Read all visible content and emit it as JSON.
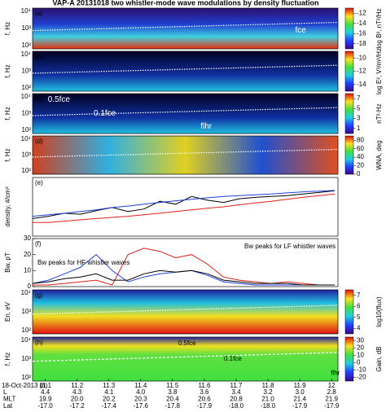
{
  "title": "VAP-A  20131018    two whistler-mode wave modulations by density fluctuation",
  "time_axis": {
    "label": "18-Oct-2013 (h)",
    "xlim": [
      11.06,
      12.02
    ],
    "ticks": [
      11.1,
      11.2,
      11.3,
      11.4,
      11.5,
      11.6,
      11.7,
      11.8,
      11.9,
      12
    ]
  },
  "ephemeris": [
    {
      "name": "L",
      "values": [
        "4.4",
        "4.3",
        "4.1",
        "4.0",
        "3.8",
        "3.6",
        "3.4",
        "3.2",
        "3.0",
        "2.8"
      ]
    },
    {
      "name": "MLT",
      "values": [
        "19.9",
        "20.0",
        "20.2",
        "20.3",
        "20.4",
        "20.6",
        "20.8",
        "21.0",
        "21.4",
        "21.9"
      ]
    },
    {
      "name": "Lat",
      "values": [
        "-17.0",
        "-17.2",
        "-17.4",
        "-17.6",
        "-17.8",
        "-17.9",
        "-18.0",
        "-18.0",
        "-17.9",
        "-17.9"
      ]
    }
  ],
  "spectrograms": [
    {
      "label": "(a)",
      "ylabel": "f, Hz",
      "yticks": [
        "10⁴",
        "10³",
        "10²"
      ],
      "colorbar": {
        "label": "log B², nT²/Hz",
        "clim": [
          -19,
          -11
        ],
        "ticks": [
          -12,
          -14,
          -16,
          -18
        ]
      },
      "annotations": [
        "fce"
      ]
    },
    {
      "label": "(b)",
      "ylabel": "f, Hz",
      "yticks": [
        "10⁴",
        "10³",
        "10²"
      ],
      "colorbar": {
        "label": "log E², V²/m²/Hz",
        "clim": [
          -15,
          -9
        ],
        "ticks": [
          -10,
          -12,
          -14
        ]
      },
      "annotations": []
    },
    {
      "label": "(c)",
      "ylabel": "f, Hz",
      "yticks": [
        "10⁴",
        "10³",
        "10²"
      ],
      "colorbar": {
        "label": "nT²·Hz",
        "clim": [
          0,
          8
        ],
        "ticks": [
          1,
          3,
          5,
          7
        ]
      },
      "annotations": [
        "0.5fce",
        "0.1fce",
        "flhr"
      ]
    },
    {
      "label": "(d)",
      "ylabel": "f, Hz",
      "yticks": [
        "10⁴",
        "10³",
        "10²"
      ],
      "colorbar": {
        "label": "WNA, deg",
        "clim": [
          0,
          90
        ],
        "ticks": [
          80,
          60,
          40,
          20,
          0
        ]
      },
      "annotations": []
    },
    {
      "label": "(g)",
      "ylabel": "En, eV",
      "yticks": [
        "10⁴",
        "10³",
        "10²"
      ],
      "colorbar": {
        "label": "log10(flux)",
        "clim": [
          3.5,
          7.5
        ],
        "ticks": [
          7,
          6,
          5,
          4
        ]
      },
      "annotations": []
    },
    {
      "label": "(h)",
      "ylabel": "f, Hz",
      "yticks": [
        "10⁴",
        "10³",
        "10²"
      ],
      "colorbar": {
        "label": "Gain, dB",
        "clim": [
          -25,
          35
        ],
        "ticks": [
          30,
          20,
          10,
          0,
          -10,
          -20
        ]
      },
      "annotations": [
        "0.5fce",
        "0.1fce",
        "flhr"
      ]
    }
  ],
  "chart_data": [
    {
      "type": "line",
      "label": "(e)",
      "ylabel": "density, #/cm³",
      "log": true,
      "ylim": [
        80,
        1200
      ],
      "x": [
        11.06,
        11.11,
        11.16,
        11.21,
        11.26,
        11.31,
        11.36,
        11.41,
        11.46,
        11.51,
        11.56,
        11.61,
        11.66,
        11.71,
        11.76,
        11.81,
        11.86,
        11.91,
        11.96,
        12.01
      ],
      "series": [
        {
          "color": "#000000",
          "values": [
            180,
            200,
            230,
            220,
            260,
            300,
            250,
            280,
            400,
            350,
            500,
            420,
            380,
            450,
            480,
            500,
            520,
            560,
            600,
            650
          ]
        },
        {
          "color": "#1f3fd8",
          "values": [
            200,
            215,
            230,
            250,
            270,
            300,
            320,
            350,
            380,
            410,
            440,
            470,
            500,
            520,
            540,
            560,
            590,
            620,
            640,
            660
          ]
        },
        {
          "color": "#e0201b",
          "values": [
            150,
            150,
            160,
            170,
            180,
            190,
            200,
            215,
            230,
            250,
            270,
            290,
            310,
            340,
            370,
            400,
            440,
            480,
            520,
            560
          ]
        }
      ]
    },
    {
      "type": "line",
      "label": "(f)",
      "ylabel": "Bw, pT",
      "ylim": [
        0,
        30
      ],
      "yticks": [
        0,
        10,
        20,
        30
      ],
      "annotations": [
        "Bw peaks for HF whistler waves",
        "Bw peaks for LF whistler waves"
      ],
      "x": [
        11.06,
        11.11,
        11.16,
        11.21,
        11.26,
        11.31,
        11.36,
        11.41,
        11.46,
        11.51,
        11.56,
        11.61,
        11.66,
        11.71,
        11.76,
        11.81,
        11.86,
        11.91,
        11.96,
        12.01
      ],
      "series": [
        {
          "color": "#e0201b",
          "values": [
            1,
            1,
            2,
            3,
            4,
            1,
            20,
            24,
            22,
            18,
            20,
            14,
            6,
            4,
            3,
            2,
            3,
            2,
            1,
            1
          ]
        },
        {
          "color": "#1f3fd8",
          "values": [
            2,
            4,
            8,
            12,
            20,
            10,
            3,
            6,
            8,
            9,
            10,
            7,
            3,
            2,
            1,
            1,
            1,
            1,
            1,
            1
          ]
        },
        {
          "color": "#000000",
          "values": [
            2,
            3,
            5,
            6,
            8,
            4,
            4,
            8,
            10,
            9,
            10,
            8,
            4,
            3,
            2,
            2,
            2,
            1,
            1,
            1
          ]
        }
      ]
    }
  ]
}
